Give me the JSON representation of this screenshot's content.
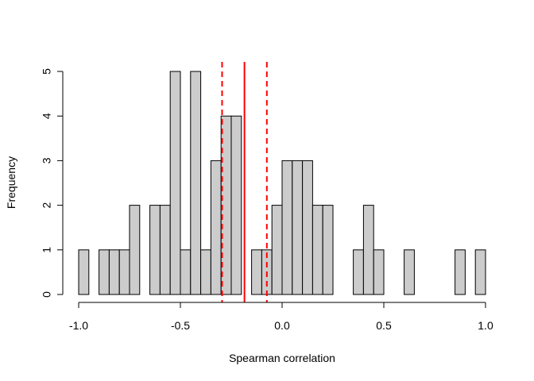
{
  "chart_data": {
    "type": "bar",
    "title": "",
    "xlabel": "Spearman correlation",
    "ylabel": "Frequency",
    "bin_width": 0.05,
    "xlim": [
      -1.0,
      1.0
    ],
    "ylim": [
      0,
      5
    ],
    "x_ticks": [
      -1.0,
      -0.5,
      0.0,
      0.5,
      1.0
    ],
    "x_tick_labels": [
      "-1.0",
      "-0.5",
      "0.0",
      "0.5",
      "1.0"
    ],
    "y_ticks": [
      0,
      1,
      2,
      3,
      4,
      5
    ],
    "y_tick_labels": [
      "0",
      "1",
      "2",
      "3",
      "4",
      "5"
    ],
    "bins": [
      {
        "start": -1.0,
        "end": -0.95,
        "count": 1
      },
      {
        "start": -0.95,
        "end": -0.9,
        "count": 0
      },
      {
        "start": -0.9,
        "end": -0.85,
        "count": 1
      },
      {
        "start": -0.85,
        "end": -0.8,
        "count": 1
      },
      {
        "start": -0.8,
        "end": -0.75,
        "count": 1
      },
      {
        "start": -0.75,
        "end": -0.7,
        "count": 2
      },
      {
        "start": -0.7,
        "end": -0.65,
        "count": 0
      },
      {
        "start": -0.65,
        "end": -0.6,
        "count": 2
      },
      {
        "start": -0.6,
        "end": -0.55,
        "count": 2
      },
      {
        "start": -0.55,
        "end": -0.5,
        "count": 5
      },
      {
        "start": -0.5,
        "end": -0.45,
        "count": 1
      },
      {
        "start": -0.45,
        "end": -0.4,
        "count": 5
      },
      {
        "start": -0.4,
        "end": -0.35,
        "count": 1
      },
      {
        "start": -0.35,
        "end": -0.3,
        "count": 3
      },
      {
        "start": -0.3,
        "end": -0.25,
        "count": 4
      },
      {
        "start": -0.25,
        "end": -0.2,
        "count": 4
      },
      {
        "start": -0.2,
        "end": -0.15,
        "count": 0
      },
      {
        "start": -0.15,
        "end": -0.1,
        "count": 1
      },
      {
        "start": -0.1,
        "end": -0.05,
        "count": 1
      },
      {
        "start": -0.05,
        "end": 0.0,
        "count": 2
      },
      {
        "start": 0.0,
        "end": 0.05,
        "count": 3
      },
      {
        "start": 0.05,
        "end": 0.1,
        "count": 3
      },
      {
        "start": 0.1,
        "end": 0.15,
        "count": 3
      },
      {
        "start": 0.15,
        "end": 0.2,
        "count": 2
      },
      {
        "start": 0.2,
        "end": 0.25,
        "count": 2
      },
      {
        "start": 0.25,
        "end": 0.3,
        "count": 0
      },
      {
        "start": 0.3,
        "end": 0.35,
        "count": 0
      },
      {
        "start": 0.35,
        "end": 0.4,
        "count": 1
      },
      {
        "start": 0.4,
        "end": 0.45,
        "count": 2
      },
      {
        "start": 0.45,
        "end": 0.5,
        "count": 1
      },
      {
        "start": 0.5,
        "end": 0.55,
        "count": 0
      },
      {
        "start": 0.55,
        "end": 0.6,
        "count": 0
      },
      {
        "start": 0.6,
        "end": 0.65,
        "count": 1
      },
      {
        "start": 0.65,
        "end": 0.7,
        "count": 0
      },
      {
        "start": 0.7,
        "end": 0.75,
        "count": 0
      },
      {
        "start": 0.75,
        "end": 0.8,
        "count": 0
      },
      {
        "start": 0.8,
        "end": 0.85,
        "count": 0
      },
      {
        "start": 0.85,
        "end": 0.9,
        "count": 1
      },
      {
        "start": 0.9,
        "end": 0.95,
        "count": 0
      },
      {
        "start": 0.95,
        "end": 1.0,
        "count": 1
      }
    ],
    "reference_lines": [
      {
        "x": -0.185,
        "style": "solid",
        "color": "#ff0000"
      },
      {
        "x": -0.295,
        "style": "dashed",
        "color": "#ff0000"
      },
      {
        "x": -0.075,
        "style": "dashed",
        "color": "#ff0000"
      }
    ],
    "bar_fill": "#cccccc",
    "bar_stroke": "#000000",
    "grid": false,
    "legend": "none"
  }
}
